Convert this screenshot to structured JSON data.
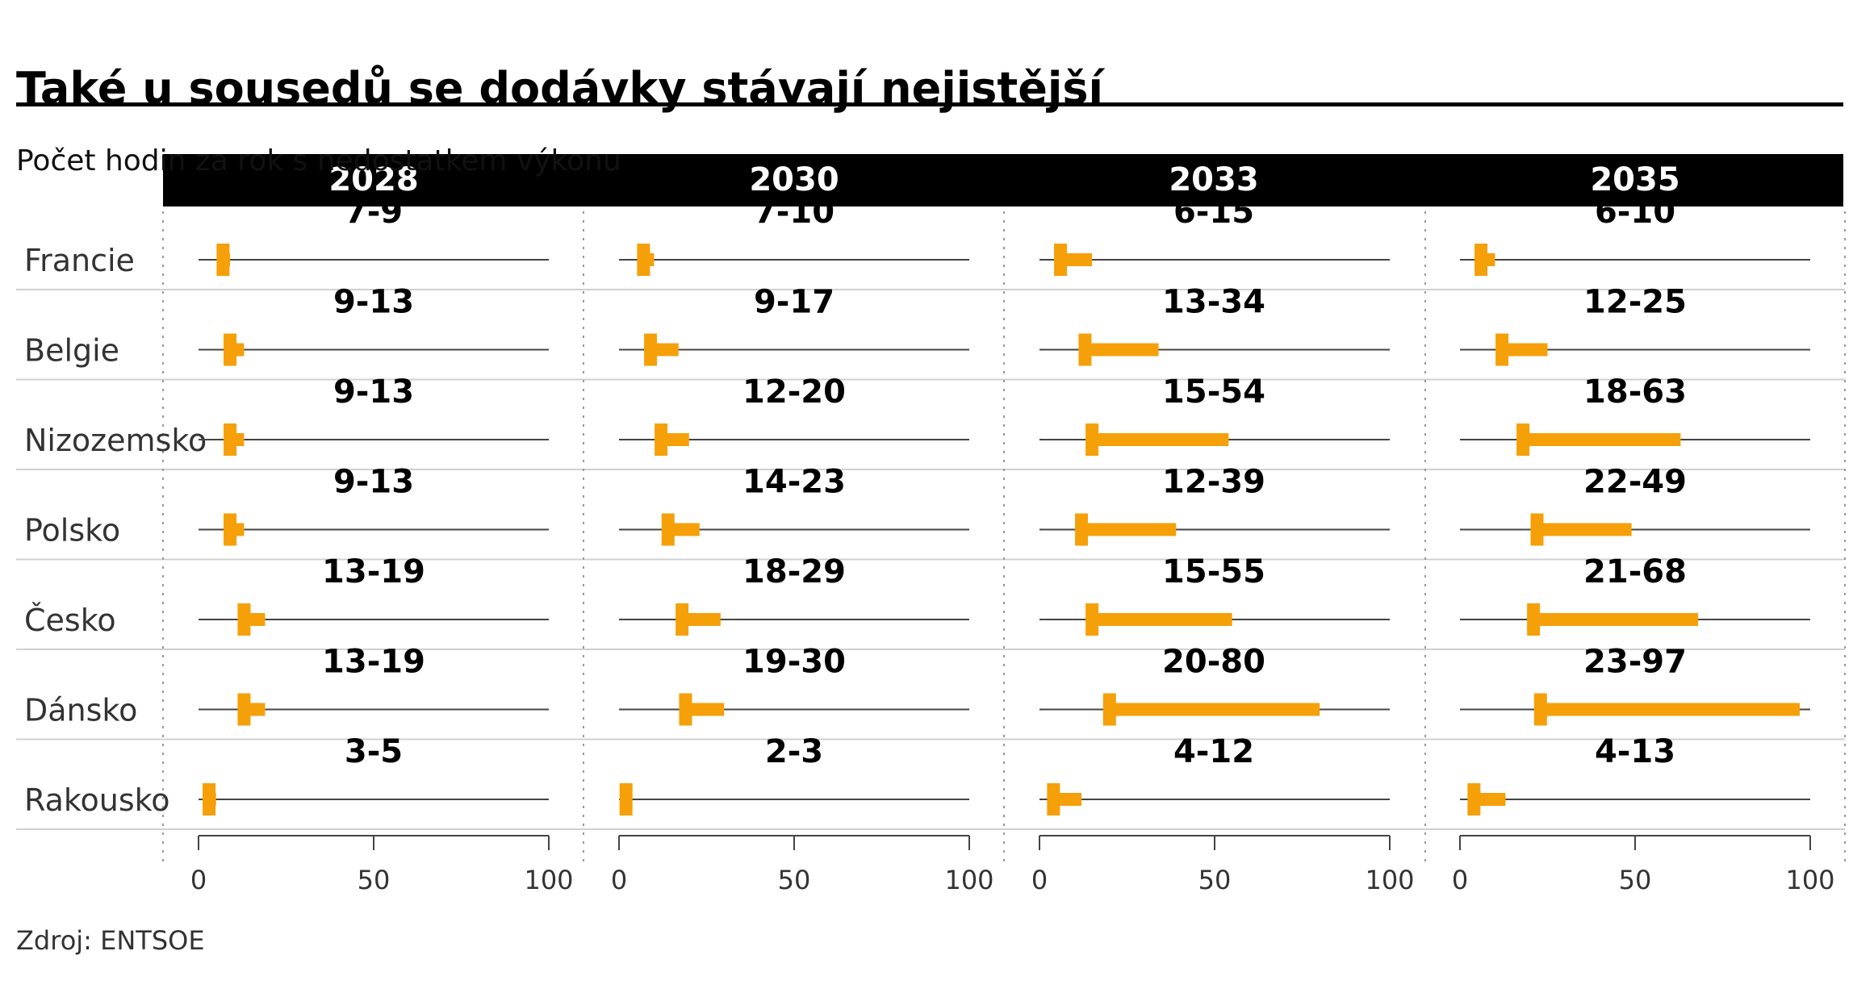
{
  "title": "Také u sousedů se dodávky stávají nejistější",
  "subtitle": "Počet hodin za rok s nedostatkem výkonu",
  "source": "Zdroj: ENTSOE",
  "colors": {
    "range_bar": "#F5A009",
    "header_bg": "#000000",
    "header_text": "#FFFFFF",
    "axis_line": "#444444",
    "row_divider": "#D0D0D0",
    "label_text": "#333333"
  },
  "chart_data": {
    "type": "range",
    "facets": [
      "2028",
      "2030",
      "2033",
      "2035"
    ],
    "categories": [
      "Francie",
      "Belgie",
      "Nizozemsko",
      "Polsko",
      "Česko",
      "Dánsko",
      "Rakousko"
    ],
    "xlim": [
      0,
      100
    ],
    "xticks": [
      0,
      50,
      100
    ],
    "series": [
      {
        "facet": "2028",
        "ranges": [
          [
            7,
            9
          ],
          [
            9,
            13
          ],
          [
            9,
            13
          ],
          [
            9,
            13
          ],
          [
            13,
            19
          ],
          [
            13,
            19
          ],
          [
            3,
            5
          ]
        ],
        "labels": [
          "7-9",
          "9-13",
          "9-13",
          "9-13",
          "13-19",
          "13-19",
          "3-5"
        ]
      },
      {
        "facet": "2030",
        "ranges": [
          [
            7,
            10
          ],
          [
            9,
            17
          ],
          [
            12,
            20
          ],
          [
            14,
            23
          ],
          [
            18,
            29
          ],
          [
            19,
            30
          ],
          [
            2,
            3
          ]
        ],
        "labels": [
          "7-10",
          "9-17",
          "12-20",
          "14-23",
          "18-29",
          "19-30",
          "2-3"
        ]
      },
      {
        "facet": "2033",
        "ranges": [
          [
            6,
            15
          ],
          [
            13,
            34
          ],
          [
            15,
            54
          ],
          [
            12,
            39
          ],
          [
            15,
            55
          ],
          [
            20,
            80
          ],
          [
            4,
            12
          ]
        ],
        "labels": [
          "6-15",
          "13-34",
          "15-54",
          "12-39",
          "15-55",
          "20-80",
          "4-12"
        ]
      },
      {
        "facet": "2035",
        "ranges": [
          [
            6,
            10
          ],
          [
            12,
            25
          ],
          [
            18,
            63
          ],
          [
            22,
            49
          ],
          [
            21,
            68
          ],
          [
            23,
            97
          ],
          [
            4,
            13
          ]
        ],
        "labels": [
          "6-10",
          "12-25",
          "18-63",
          "22-49",
          "21-68",
          "23-97",
          "4-13"
        ]
      }
    ]
  }
}
